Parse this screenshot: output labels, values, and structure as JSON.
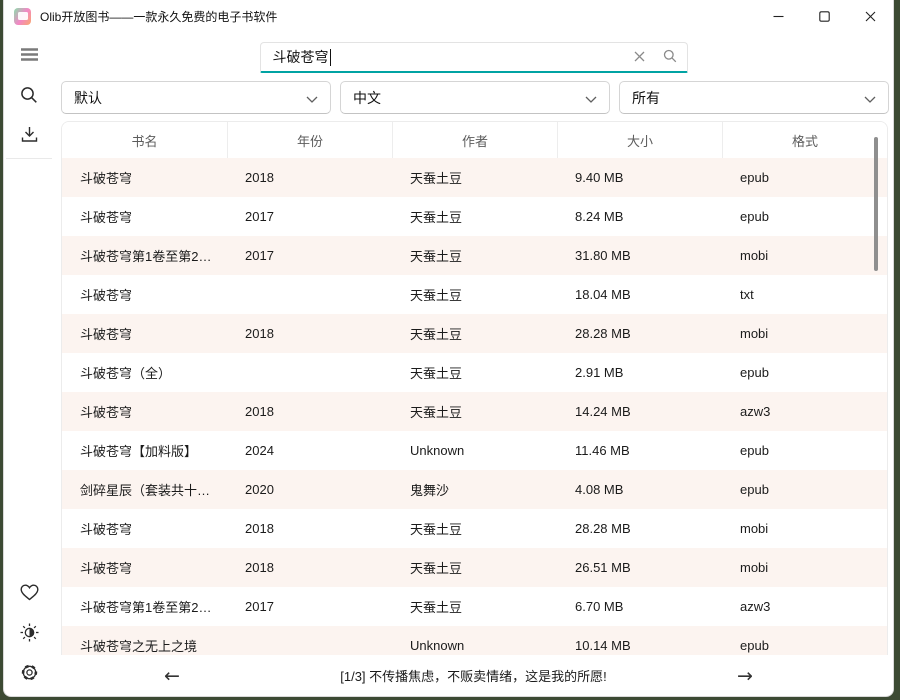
{
  "window": {
    "title": "Olib开放图书——一款永久免费的电子书软件",
    "controls": [
      "minimize",
      "maximize",
      "close"
    ]
  },
  "colors": {
    "accent": "#00A3A3",
    "row_alt": "#FCF4F0",
    "backdrop": "#3C4A33"
  },
  "sidebar": {
    "top_icons": [
      "hamburger-menu-icon",
      "search-icon",
      "download-icon"
    ],
    "bottom_icons": [
      "heart-icon",
      "theme-toggle-icon",
      "settings-gear-icon"
    ]
  },
  "search": {
    "value": "斗破苍穹",
    "clear_icon": "x-clear-icon",
    "submit_icon": "magnifier-icon"
  },
  "filters": {
    "sort": "默认",
    "language": "中文",
    "format": "所有"
  },
  "table": {
    "columns": [
      "书名",
      "年份",
      "作者",
      "大小",
      "格式"
    ],
    "column_keys": [
      "title",
      "year",
      "author",
      "size",
      "format"
    ],
    "rows": [
      [
        "斗破苍穹",
        "2018",
        "天蚕土豆",
        "9.40 MB",
        "epub"
      ],
      [
        "斗破苍穹",
        "2017",
        "天蚕土豆",
        "8.24 MB",
        "epub"
      ],
      [
        "斗破苍穹第1卷至第2…",
        "2017",
        "天蚕土豆",
        "31.80 MB",
        "mobi"
      ],
      [
        "斗破苍穹",
        "",
        "天蚕土豆",
        "18.04 MB",
        "txt"
      ],
      [
        "斗破苍穹",
        "2018",
        "天蚕土豆",
        "28.28 MB",
        "mobi"
      ],
      [
        "斗破苍穹（全）",
        "",
        "天蚕土豆",
        "2.91 MB",
        "epub"
      ],
      [
        "斗破苍穹",
        "2018",
        "天蚕土豆",
        "14.24 MB",
        "azw3"
      ],
      [
        "斗破苍穹【加料版】",
        "2024",
        "Unknown",
        "11.46 MB",
        "epub"
      ],
      [
        "剑碎星辰（套装共十…",
        "2020",
        "鬼舞沙",
        "4.08 MB",
        "epub"
      ],
      [
        "斗破苍穹",
        "2018",
        "天蚕土豆",
        "28.28 MB",
        "mobi"
      ],
      [
        "斗破苍穹",
        "2018",
        "天蚕土豆",
        "26.51 MB",
        "mobi"
      ],
      [
        "斗破苍穹第1卷至第2…",
        "2017",
        "天蚕土豆",
        "6.70 MB",
        "azw3"
      ],
      [
        "斗破苍穹之无上之境",
        "",
        "Unknown",
        "10.14 MB",
        "epub"
      ]
    ]
  },
  "footer": {
    "status_text": "[1/3] 不传播焦虑，不贩卖情绪，这是我的所愿!",
    "prev_arrow": "←",
    "next_arrow": "→"
  }
}
